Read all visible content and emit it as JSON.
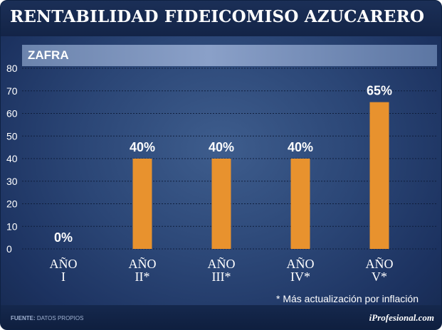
{
  "header": {
    "title": "RENTABILIDAD FIDEICOMISO AZUCARERO"
  },
  "section": {
    "label": "ZAFRA"
  },
  "chart_data": {
    "type": "bar",
    "title": "RENTABILIDAD FIDEICOMISO AZUCARERO",
    "subtitle": "ZAFRA",
    "categories": [
      [
        "AÑO",
        "I"
      ],
      [
        "AÑO",
        "II*"
      ],
      [
        "AÑO",
        "III*"
      ],
      [
        "AÑO",
        "IV*"
      ],
      [
        "AÑO",
        "V*"
      ]
    ],
    "values": [
      0,
      40,
      40,
      40,
      65
    ],
    "data_labels": [
      "0%",
      "40%",
      "40%",
      "40%",
      "65%"
    ],
    "ylim": [
      0,
      80
    ],
    "yticks": [
      0,
      10,
      20,
      30,
      40,
      50,
      60,
      70,
      80
    ],
    "grid": true,
    "bar_color": "#e8922e",
    "xlabel": "",
    "ylabel": ""
  },
  "note": "* Más actualización por inflación",
  "footer": {
    "source_prefix": "FUENTE:",
    "source_text": "DATOS PROPIOS",
    "brand": "iProfesional.com"
  }
}
